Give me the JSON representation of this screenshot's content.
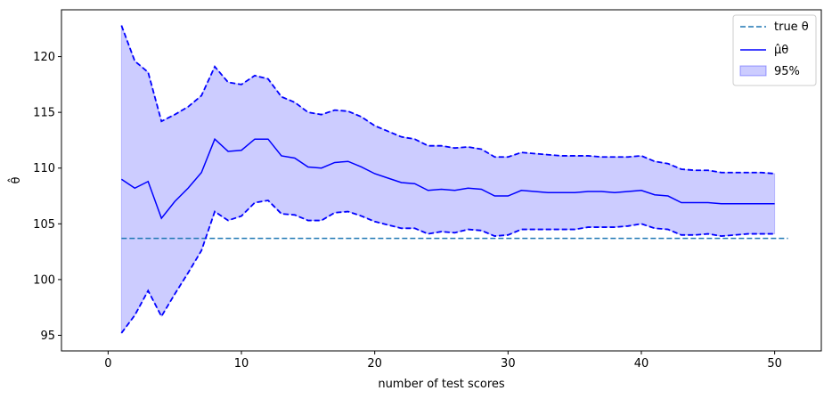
{
  "chart_data": {
    "type": "line",
    "xlabel": "number of test scores",
    "ylabel": "θ̂",
    "xlim": [
      -3.5,
      53.5
    ],
    "ylim": [
      93.6,
      124.2
    ],
    "xticks": [
      0,
      10,
      20,
      30,
      40,
      50
    ],
    "yticks": [
      95,
      100,
      105,
      110,
      115,
      120
    ],
    "grid": false,
    "legend_position": "top-right",
    "x": [
      1,
      2,
      3,
      4,
      5,
      6,
      7,
      8,
      9,
      10,
      11,
      12,
      13,
      14,
      15,
      16,
      17,
      18,
      19,
      20,
      21,
      22,
      23,
      24,
      25,
      26,
      27,
      28,
      29,
      30,
      31,
      32,
      33,
      34,
      35,
      36,
      37,
      38,
      39,
      40,
      41,
      42,
      43,
      44,
      45,
      46,
      47,
      48,
      49,
      50
    ],
    "true_theta": {
      "name": "true θ",
      "value": 103.7,
      "x_range": [
        1,
        51
      ],
      "color": "#1f77b4",
      "style": "dashed"
    },
    "series": [
      {
        "name": "μ̂θ",
        "color": "#0000ff",
        "style": "solid",
        "values": [
          109.0,
          108.2,
          108.8,
          105.5,
          107.0,
          108.2,
          109.6,
          112.6,
          111.5,
          111.6,
          112.6,
          112.6,
          111.1,
          110.9,
          110.1,
          110.0,
          110.5,
          110.6,
          110.1,
          109.5,
          109.1,
          108.7,
          108.6,
          108.0,
          108.1,
          108.0,
          108.2,
          108.1,
          107.5,
          107.5,
          108.0,
          107.9,
          107.8,
          107.8,
          107.8,
          107.9,
          107.9,
          107.8,
          107.9,
          108.0,
          107.6,
          107.5,
          106.9,
          106.9,
          106.9,
          106.8,
          106.8,
          106.8,
          106.8,
          106.8
        ]
      },
      {
        "name": "upper",
        "color": "#0000ff",
        "style": "dashed",
        "values": [
          122.8,
          119.6,
          118.6,
          114.2,
          114.8,
          115.5,
          116.5,
          119.1,
          117.7,
          117.5,
          118.3,
          118.0,
          116.4,
          115.9,
          115.0,
          114.8,
          115.2,
          115.1,
          114.6,
          113.8,
          113.3,
          112.8,
          112.6,
          112.0,
          112.0,
          111.8,
          111.9,
          111.7,
          111.0,
          111.0,
          111.4,
          111.3,
          111.2,
          111.1,
          111.1,
          111.1,
          111.0,
          111.0,
          111.0,
          111.1,
          110.6,
          110.4,
          109.9,
          109.8,
          109.8,
          109.6,
          109.6,
          109.6,
          109.6,
          109.5
        ]
      },
      {
        "name": "lower",
        "color": "#0000ff",
        "style": "dashed",
        "values": [
          95.2,
          96.8,
          99.0,
          96.7,
          98.7,
          100.6,
          102.6,
          106.1,
          105.3,
          105.7,
          106.9,
          107.1,
          105.9,
          105.8,
          105.3,
          105.3,
          106.0,
          106.1,
          105.7,
          105.2,
          104.9,
          104.6,
          104.6,
          104.1,
          104.3,
          104.2,
          104.5,
          104.4,
          103.9,
          104.0,
          104.5,
          104.5,
          104.5,
          104.5,
          104.5,
          104.7,
          104.7,
          104.7,
          104.8,
          105.0,
          104.6,
          104.5,
          104.0,
          104.0,
          104.1,
          103.9,
          104.0,
          104.1,
          104.1,
          104.1
        ]
      }
    ],
    "band": {
      "name": "95%",
      "color": "#0000ff",
      "opacity": 0.2
    }
  }
}
